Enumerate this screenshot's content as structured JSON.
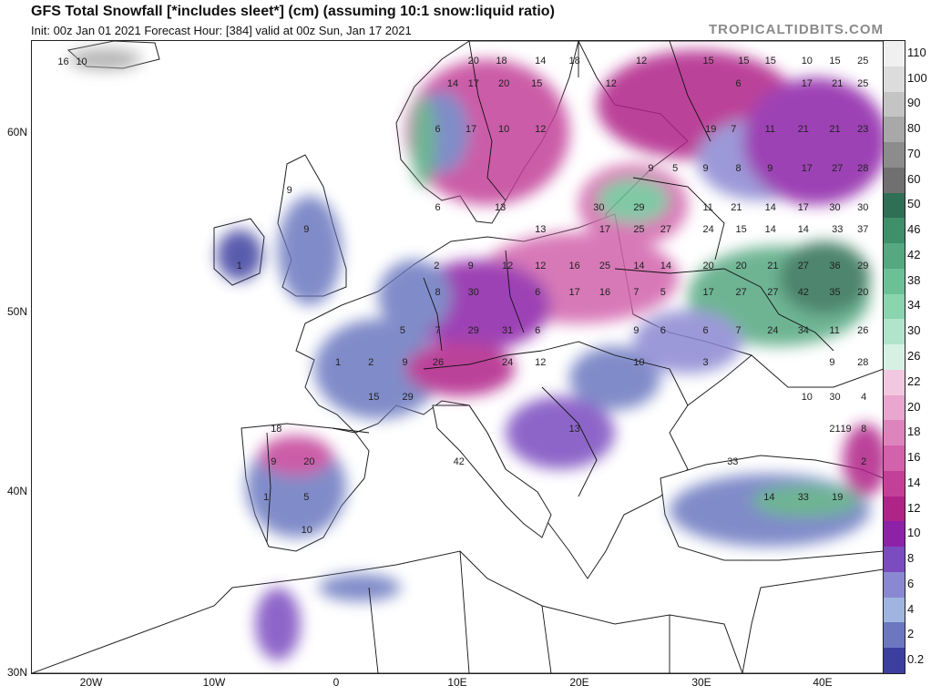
{
  "header": {
    "title": "GFS Total Snowfall [*includes sleet*] (cm) (assuming 10:1 snow:liquid ratio)",
    "subtitle": "Init: 00z Jan 01 2021   Forecast Hour: [384]   valid at 00z Sun, Jan 17 2021",
    "brand": "TROPICALTIDBITS.COM"
  },
  "axes": {
    "lat_labels": [
      "60N",
      "50N",
      "40N",
      "30N"
    ],
    "lon_labels": [
      "20W",
      "10W",
      "0",
      "10E",
      "20E",
      "30E",
      "40E"
    ]
  },
  "colorbar": {
    "labels": [
      "110",
      "100",
      "90",
      "80",
      "70",
      "60",
      "50",
      "46",
      "42",
      "38",
      "34",
      "30",
      "26",
      "22",
      "20",
      "18",
      "16",
      "14",
      "12",
      "10",
      "8",
      "6",
      "4",
      "2",
      "0.2"
    ],
    "colors": [
      "#f0f0f0",
      "#dcdcdc",
      "#c4c4c4",
      "#a8a8a8",
      "#8c8c8c",
      "#707070",
      "#2f6f55",
      "#3f8f6a",
      "#55a880",
      "#6cc096",
      "#8ad4ae",
      "#b0e4cb",
      "#d6f1e4",
      "#f2c8e0",
      "#e9a6cf",
      "#de84bd",
      "#d162ab",
      "#c34099",
      "#b02488",
      "#8d21a8",
      "#7a4cc0",
      "#8b88d2",
      "#9fb5df",
      "#6b78c0",
      "#3c3f9f"
    ]
  },
  "map_labels": [
    {
      "text": "16",
      "lon": -22.5,
      "lat": 63.9
    },
    {
      "text": "10",
      "lon": -21.0,
      "lat": 63.9
    },
    {
      "text": "20",
      "lon": 11.2,
      "lat": 64.0
    },
    {
      "text": "18",
      "lon": 13.5,
      "lat": 64.0
    },
    {
      "text": "14",
      "lon": 16.7,
      "lat": 64.0
    },
    {
      "text": "18",
      "lon": 19.5,
      "lat": 64.0
    },
    {
      "text": "12",
      "lon": 25.0,
      "lat": 64.0
    },
    {
      "text": "15",
      "lon": 30.5,
      "lat": 64.0
    },
    {
      "text": "15",
      "lon": 33.4,
      "lat": 64.0
    },
    {
      "text": "15",
      "lon": 35.6,
      "lat": 64.0
    },
    {
      "text": "10",
      "lon": 38.6,
      "lat": 64.0
    },
    {
      "text": "15",
      "lon": 40.9,
      "lat": 64.0
    },
    {
      "text": "25",
      "lon": 43.2,
      "lat": 64.0
    },
    {
      "text": "14",
      "lon": 9.5,
      "lat": 62.7
    },
    {
      "text": "17",
      "lon": 11.2,
      "lat": 62.7
    },
    {
      "text": "20",
      "lon": 13.7,
      "lat": 62.7
    },
    {
      "text": "15",
      "lon": 16.4,
      "lat": 62.7
    },
    {
      "text": "12",
      "lon": 22.5,
      "lat": 62.7
    },
    {
      "text": "6",
      "lon": 33.2,
      "lat": 62.7
    },
    {
      "text": "17",
      "lon": 38.6,
      "lat": 62.7
    },
    {
      "text": "21",
      "lon": 41.1,
      "lat": 62.7
    },
    {
      "text": "25",
      "lon": 43.2,
      "lat": 62.7
    },
    {
      "text": "6",
      "lon": 8.5,
      "lat": 60.2
    },
    {
      "text": "17",
      "lon": 11.0,
      "lat": 60.2
    },
    {
      "text": "10",
      "lon": 13.7,
      "lat": 60.2
    },
    {
      "text": "12",
      "lon": 16.7,
      "lat": 60.2
    },
    {
      "text": "19",
      "lon": 30.7,
      "lat": 60.2
    },
    {
      "text": "7",
      "lon": 32.8,
      "lat": 60.2
    },
    {
      "text": "11",
      "lon": 35.6,
      "lat": 60.2
    },
    {
      "text": "21",
      "lon": 38.3,
      "lat": 60.2
    },
    {
      "text": "21",
      "lon": 40.9,
      "lat": 60.2
    },
    {
      "text": "23",
      "lon": 43.2,
      "lat": 60.2
    },
    {
      "text": "9",
      "lon": 26.0,
      "lat": 58.0
    },
    {
      "text": "5",
      "lon": 28.0,
      "lat": 58.0
    },
    {
      "text": "9",
      "lon": 30.5,
      "lat": 58.0
    },
    {
      "text": "8",
      "lon": 33.2,
      "lat": 58.0
    },
    {
      "text": "9",
      "lon": 35.8,
      "lat": 58.0
    },
    {
      "text": "17",
      "lon": 38.6,
      "lat": 58.0
    },
    {
      "text": "27",
      "lon": 41.1,
      "lat": 58.0
    },
    {
      "text": "28",
      "lon": 43.2,
      "lat": 58.0
    },
    {
      "text": "9",
      "lon": -3.7,
      "lat": 56.8
    },
    {
      "text": "6",
      "lon": 8.5,
      "lat": 55.8
    },
    {
      "text": "13",
      "lon": 13.4,
      "lat": 55.8
    },
    {
      "text": "30",
      "lon": 21.5,
      "lat": 55.8
    },
    {
      "text": "29",
      "lon": 24.8,
      "lat": 55.8
    },
    {
      "text": "11",
      "lon": 30.5,
      "lat": 55.8
    },
    {
      "text": "21",
      "lon": 32.8,
      "lat": 55.8
    },
    {
      "text": "14",
      "lon": 35.6,
      "lat": 55.8
    },
    {
      "text": "17",
      "lon": 38.3,
      "lat": 55.8
    },
    {
      "text": "30",
      "lon": 40.9,
      "lat": 55.8
    },
    {
      "text": "30",
      "lon": 43.2,
      "lat": 55.8
    },
    {
      "text": "9",
      "lon": -2.3,
      "lat": 54.6
    },
    {
      "text": "13",
      "lon": 16.7,
      "lat": 54.6
    },
    {
      "text": "17",
      "lon": 22.0,
      "lat": 54.6
    },
    {
      "text": "25",
      "lon": 24.8,
      "lat": 54.6
    },
    {
      "text": "27",
      "lon": 27.0,
      "lat": 54.6
    },
    {
      "text": "24",
      "lon": 30.5,
      "lat": 54.6
    },
    {
      "text": "15",
      "lon": 33.2,
      "lat": 54.6
    },
    {
      "text": "14",
      "lon": 35.6,
      "lat": 54.6
    },
    {
      "text": "14",
      "lon": 38.3,
      "lat": 54.6
    },
    {
      "text": "33",
      "lon": 41.1,
      "lat": 54.6
    },
    {
      "text": "37",
      "lon": 43.2,
      "lat": 54.6
    },
    {
      "text": "1",
      "lon": -7.8,
      "lat": 52.6
    },
    {
      "text": "2",
      "lon": 8.4,
      "lat": 52.6
    },
    {
      "text": "9",
      "lon": 11.2,
      "lat": 52.6
    },
    {
      "text": "12",
      "lon": 14.0,
      "lat": 52.6
    },
    {
      "text": "12",
      "lon": 16.7,
      "lat": 52.6
    },
    {
      "text": "16",
      "lon": 19.5,
      "lat": 52.6
    },
    {
      "text": "25",
      "lon": 22.0,
      "lat": 52.6
    },
    {
      "text": "14",
      "lon": 24.8,
      "lat": 52.6
    },
    {
      "text": "14",
      "lon": 27.0,
      "lat": 52.6
    },
    {
      "text": "20",
      "lon": 30.5,
      "lat": 52.6
    },
    {
      "text": "20",
      "lon": 33.2,
      "lat": 52.6
    },
    {
      "text": "21",
      "lon": 35.8,
      "lat": 52.6
    },
    {
      "text": "27",
      "lon": 38.3,
      "lat": 52.6
    },
    {
      "text": "36",
      "lon": 40.9,
      "lat": 52.6
    },
    {
      "text": "29",
      "lon": 43.2,
      "lat": 52.6
    },
    {
      "text": "8",
      "lon": 8.5,
      "lat": 51.1
    },
    {
      "text": "30",
      "lon": 11.2,
      "lat": 51.1
    },
    {
      "text": "6",
      "lon": 16.7,
      "lat": 51.1
    },
    {
      "text": "17",
      "lon": 19.5,
      "lat": 51.1
    },
    {
      "text": "16",
      "lon": 22.0,
      "lat": 51.1
    },
    {
      "text": "7",
      "lon": 24.8,
      "lat": 51.1
    },
    {
      "text": "5",
      "lon": 27.0,
      "lat": 51.1
    },
    {
      "text": "17",
      "lon": 30.5,
      "lat": 51.1
    },
    {
      "text": "27",
      "lon": 33.2,
      "lat": 51.1
    },
    {
      "text": "27",
      "lon": 35.8,
      "lat": 51.1
    },
    {
      "text": "42",
      "lon": 38.3,
      "lat": 51.1
    },
    {
      "text": "35",
      "lon": 40.9,
      "lat": 51.1
    },
    {
      "text": "20",
      "lon": 43.2,
      "lat": 51.1
    },
    {
      "text": "5",
      "lon": 5.6,
      "lat": 49.0
    },
    {
      "text": "7",
      "lon": 8.5,
      "lat": 49.0
    },
    {
      "text": "29",
      "lon": 11.2,
      "lat": 49.0
    },
    {
      "text": "31",
      "lon": 14.0,
      "lat": 49.0
    },
    {
      "text": "6",
      "lon": 16.7,
      "lat": 49.0
    },
    {
      "text": "9",
      "lon": 24.8,
      "lat": 49.0
    },
    {
      "text": "6",
      "lon": 27.0,
      "lat": 49.0
    },
    {
      "text": "6",
      "lon": 30.5,
      "lat": 49.0
    },
    {
      "text": "7",
      "lon": 33.2,
      "lat": 49.0
    },
    {
      "text": "24",
      "lon": 35.8,
      "lat": 49.0
    },
    {
      "text": "34",
      "lon": 38.3,
      "lat": 49.0
    },
    {
      "text": "11",
      "lon": 40.9,
      "lat": 49.0
    },
    {
      "text": "26",
      "lon": 43.2,
      "lat": 49.0
    },
    {
      "text": "1",
      "lon": 0.3,
      "lat": 47.2
    },
    {
      "text": "2",
      "lon": 3.0,
      "lat": 47.2
    },
    {
      "text": "9",
      "lon": 5.8,
      "lat": 47.2
    },
    {
      "text": "26",
      "lon": 8.3,
      "lat": 47.2
    },
    {
      "text": "24",
      "lon": 14.0,
      "lat": 47.2
    },
    {
      "text": "12",
      "lon": 16.7,
      "lat": 47.2
    },
    {
      "text": "10",
      "lon": 24.8,
      "lat": 47.2
    },
    {
      "text": "3",
      "lon": 30.5,
      "lat": 47.2
    },
    {
      "text": "9",
      "lon": 40.9,
      "lat": 47.2
    },
    {
      "text": "28",
      "lon": 43.2,
      "lat": 47.2
    },
    {
      "text": "15",
      "lon": 3.0,
      "lat": 45.3
    },
    {
      "text": "29",
      "lon": 5.8,
      "lat": 45.3
    },
    {
      "text": "10",
      "lon": 38.6,
      "lat": 45.3
    },
    {
      "text": "30",
      "lon": 40.9,
      "lat": 45.3
    },
    {
      "text": "4",
      "lon": 43.5,
      "lat": 45.3
    },
    {
      "text": "18",
      "lon": -5.0,
      "lat": 43.5
    },
    {
      "text": "13",
      "lon": 19.5,
      "lat": 43.5
    },
    {
      "text": "21",
      "lon": 40.9,
      "lat": 43.5
    },
    {
      "text": "19",
      "lon": 41.8,
      "lat": 43.5
    },
    {
      "text": "8",
      "lon": 43.5,
      "lat": 43.5
    },
    {
      "text": "9",
      "lon": -5.0,
      "lat": 41.7
    },
    {
      "text": "20",
      "lon": -2.3,
      "lat": 41.7
    },
    {
      "text": "42",
      "lon": 10.0,
      "lat": 41.7
    },
    {
      "text": "33",
      "lon": 32.5,
      "lat": 41.7
    },
    {
      "text": "2",
      "lon": 43.5,
      "lat": 41.7
    },
    {
      "text": "1",
      "lon": -5.6,
      "lat": 39.7
    },
    {
      "text": "5",
      "lon": -2.3,
      "lat": 39.7
    },
    {
      "text": "14",
      "lon": 35.5,
      "lat": 39.7
    },
    {
      "text": "33",
      "lon": 38.3,
      "lat": 39.7
    },
    {
      "text": "19",
      "lon": 41.1,
      "lat": 39.7
    },
    {
      "text": "10",
      "lon": -2.5,
      "lat": 37.9
    }
  ]
}
